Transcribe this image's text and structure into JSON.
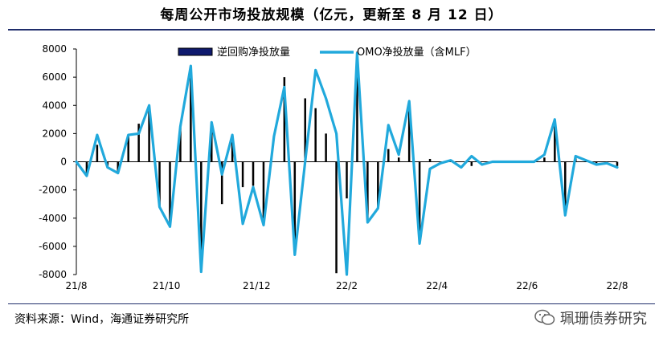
{
  "title": "每周公开市场投放规模（亿元，更新至 8 月 12 日）",
  "source": "资料来源：Wind，海通证券研究所",
  "watermark": "珮珊债券研究",
  "colors": {
    "bar": "#000000",
    "line": "#21a9dc",
    "header_rule": "#1f2d6b"
  },
  "chart_data": {
    "type": "bar+line",
    "x_tick_labels": [
      "21/8",
      "21/10",
      "21/12",
      "22/2",
      "22/4",
      "22/6",
      "22/8"
    ],
    "ylim": [
      -8000,
      8000
    ],
    "y_ticks": [
      8000,
      6000,
      4000,
      2000,
      0,
      -2000,
      -4000,
      -6000,
      -8000
    ],
    "legend_position": "top",
    "series": [
      {
        "name": "逆回购净投放量",
        "kind": "bar",
        "values": [
          0,
          -1000,
          1200,
          -400,
          -700,
          1900,
          2700,
          3700,
          -3200,
          -4600,
          2400,
          6000,
          -7700,
          2800,
          -3000,
          1900,
          -1800,
          -1700,
          -4400,
          0,
          6000,
          -6500,
          4500,
          3800,
          2000,
          -7900,
          -2600,
          7800,
          -4200,
          -3300,
          900,
          300,
          4100,
          -5800,
          200,
          0,
          0,
          0,
          -300,
          0,
          0,
          0,
          0,
          0,
          0,
          300,
          2700,
          -3700,
          300,
          100,
          -100,
          -100,
          -300
        ],
        "color": "#000000"
      },
      {
        "name": "OMO净投放量（含MLF）",
        "kind": "line",
        "values": [
          0,
          -1000,
          1900,
          -400,
          -800,
          1900,
          2000,
          4000,
          -3200,
          -4600,
          2500,
          6800,
          -7800,
          2800,
          -900,
          1900,
          -4400,
          -1800,
          -4500,
          1800,
          5300,
          -6600,
          0,
          6500,
          4500,
          2000,
          -8000,
          7700,
          -4300,
          -3300,
          2600,
          500,
          4300,
          -5800,
          -500,
          -100,
          100,
          -400,
          400,
          -200,
          0,
          0,
          0,
          0,
          0,
          500,
          3000,
          -3800,
          400,
          100,
          -200,
          -100,
          -400
        ],
        "color": "#21a9dc"
      }
    ]
  }
}
